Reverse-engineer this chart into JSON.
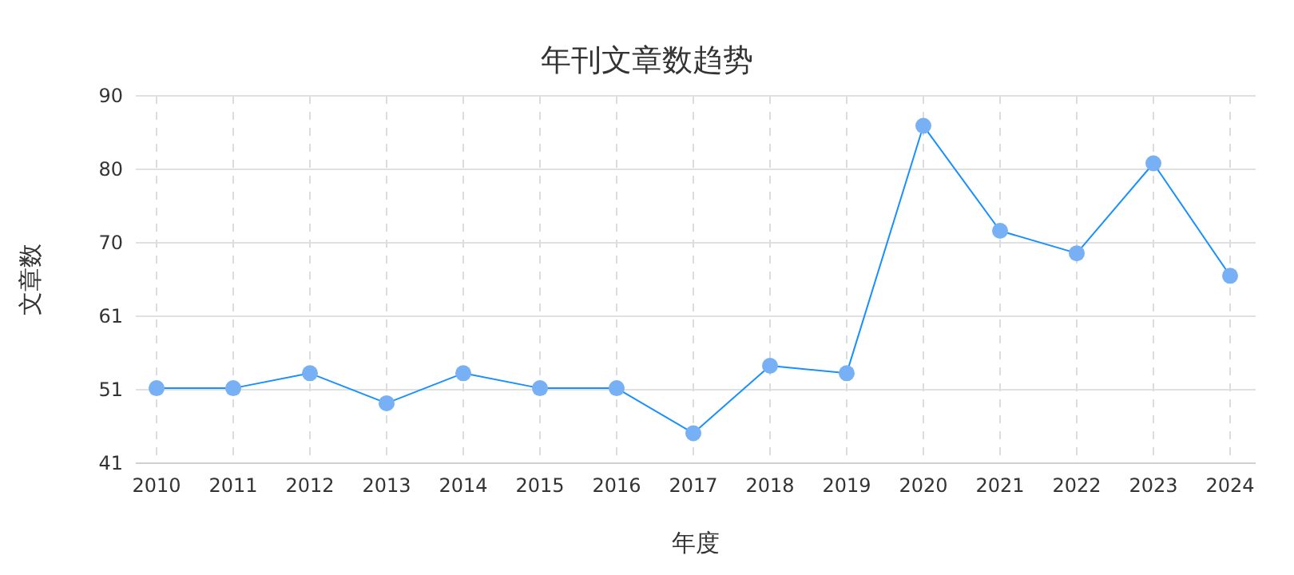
{
  "chart_data": {
    "type": "line",
    "title": "年刊文章数趋势",
    "xlabel": "年度",
    "ylabel": "文章数",
    "categories": [
      "2010",
      "2011",
      "2012",
      "2013",
      "2014",
      "2015",
      "2016",
      "2017",
      "2018",
      "2019",
      "2020",
      "2021",
      "2022",
      "2023",
      "2024"
    ],
    "series": [
      {
        "color": "#1890ff",
        "values": [
          51,
          51,
          53,
          49,
          53,
          51,
          51,
          45,
          54,
          53,
          86,
          72,
          69,
          81,
          66
        ]
      }
    ],
    "ylim": [
      41,
      90
    ],
    "yticks": [
      41,
      {
        "value": 50.8,
        "label": "51"
      },
      {
        "value": 60.6,
        "label": "61"
      },
      {
        "value": 70.4,
        "label": "70"
      },
      {
        "value": 80.2,
        "label": "80"
      },
      90
    ],
    "grid": true,
    "marker": "circle",
    "line_style": "solid"
  }
}
